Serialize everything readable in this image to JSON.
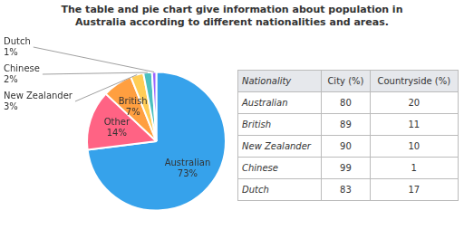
{
  "chart_data": [
    {
      "type": "pie",
      "title": [
        "The table and pie chart give information about population in",
        "Australia according to different nationalities and areas."
      ],
      "categories": [
        "Australian",
        "Other",
        "British",
        "New Zealander",
        "Chinese",
        "Dutch"
      ],
      "values": [
        73,
        14,
        7,
        3,
        2,
        1
      ],
      "value_labels": [
        "73%",
        "14%",
        "7%",
        "3%",
        "2%",
        "1%"
      ],
      "legend": false
    },
    {
      "type": "table",
      "columns": [
        "Nationality",
        "City (%)",
        "Countryside (%)"
      ],
      "rows": [
        [
          "Australian",
          "80",
          "20"
        ],
        [
          "British",
          "89",
          "11"
        ],
        [
          "New Zealander",
          "90",
          "10"
        ],
        [
          "Chinese",
          "99",
          "1"
        ],
        [
          "Dutch",
          "83",
          "17"
        ]
      ]
    }
  ]
}
